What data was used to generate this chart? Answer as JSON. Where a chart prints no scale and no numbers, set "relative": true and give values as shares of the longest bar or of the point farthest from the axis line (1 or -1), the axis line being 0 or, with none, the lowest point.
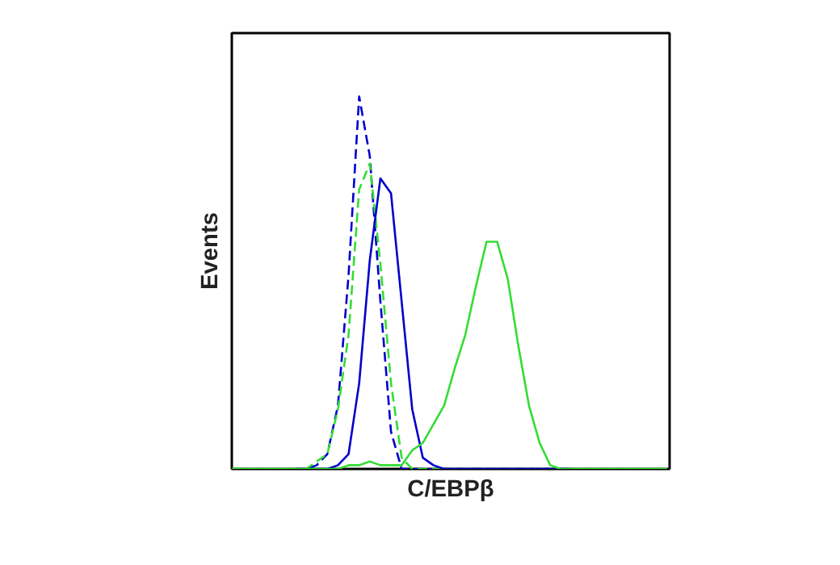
{
  "chart_data": {
    "type": "line",
    "xlabel": "C/EBPβ",
    "ylabel": "Events",
    "relative": true,
    "tick_labels": false,
    "categories": [
      null,
      null,
      null,
      null,
      null,
      null,
      null,
      null,
      null,
      null,
      null,
      null,
      null,
      null,
      null,
      null,
      null,
      null,
      null,
      null,
      null,
      null,
      null,
      null,
      null,
      null,
      null,
      null,
      null,
      null,
      null,
      null,
      null,
      null,
      null,
      null,
      null,
      null,
      null,
      null,
      null,
      null
    ],
    "series": [
      {
        "color": "#0000cc",
        "line_style": "dashed",
        "values": [
          null,
          null,
          null,
          null,
          null,
          null,
          0,
          0,
          0.01,
          0.04,
          0.17,
          0.52,
          1.0,
          0.84,
          0.45,
          0.1,
          0,
          0,
          0,
          0,
          0,
          0,
          0,
          0,
          0,
          0,
          0,
          0,
          0,
          0,
          0,
          0,
          0,
          null,
          null,
          null,
          null,
          null,
          null,
          null,
          null,
          null
        ]
      },
      {
        "color": "#33dd33",
        "line_style": "dashed",
        "values": [
          0,
          0,
          0,
          0,
          0,
          0,
          0,
          0,
          0.02,
          0.04,
          0.16,
          0.36,
          0.75,
          0.82,
          0.55,
          0.23,
          0.03,
          0,
          0,
          0,
          0,
          0,
          0,
          0,
          0,
          0,
          0,
          0,
          0,
          0,
          0,
          0,
          0,
          0,
          0,
          0,
          0,
          0,
          0,
          0,
          0,
          0
        ]
      },
      {
        "color": "#0000cc",
        "line_style": "solid",
        "values": [
          null,
          null,
          null,
          null,
          null,
          null,
          0,
          0,
          0,
          0,
          0.01,
          0.04,
          0.23,
          0.56,
          0.78,
          0.74,
          0.45,
          0.16,
          0.03,
          0.01,
          0,
          0,
          0,
          0,
          0,
          0,
          0,
          0,
          0,
          0,
          0,
          0,
          0,
          null,
          null,
          null,
          null,
          null,
          null,
          null,
          null,
          null
        ]
      },
      {
        "color": "#33dd33",
        "line_style": "solid",
        "values": [
          0,
          0,
          0,
          0,
          0,
          0,
          0,
          0,
          0,
          0,
          0,
          0.01,
          0.01,
          0.02,
          0.01,
          0.01,
          0.01,
          0.05,
          0.07,
          0.12,
          0.17,
          0.27,
          0.36,
          0.49,
          0.61,
          0.61,
          0.51,
          0.33,
          0.17,
          0.07,
          0.01,
          0,
          0,
          0,
          0,
          0,
          0,
          0,
          0,
          0,
          0,
          0
        ]
      }
    ]
  }
}
